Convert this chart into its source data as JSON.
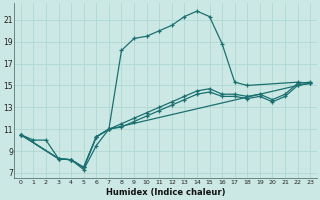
{
  "xlabel": "Humidex (Indice chaleur)",
  "xlim": [
    -0.5,
    23.5
  ],
  "ylim": [
    6.5,
    22.5
  ],
  "xticks": [
    0,
    1,
    2,
    3,
    4,
    5,
    6,
    7,
    8,
    9,
    10,
    11,
    12,
    13,
    14,
    15,
    16,
    17,
    18,
    19,
    20,
    21,
    22,
    23
  ],
  "yticks": [
    7,
    9,
    11,
    13,
    15,
    17,
    19,
    21
  ],
  "background_color": "#cce8e4",
  "grid_color": "#b0d8d4",
  "line_color": "#1a7070",
  "line1_x": [
    0,
    1,
    2,
    3,
    4,
    5,
    6,
    7,
    8,
    9,
    10,
    11,
    12,
    13,
    14,
    15,
    16,
    17,
    18,
    22,
    23
  ],
  "line1_y": [
    10.5,
    10.0,
    10.0,
    8.3,
    8.2,
    7.3,
    9.5,
    11.0,
    18.2,
    19.3,
    19.5,
    20.0,
    20.5,
    21.3,
    21.8,
    21.3,
    18.8,
    15.3,
    15.0,
    15.3,
    15.2
  ],
  "line2_x": [
    0,
    3,
    4,
    5,
    6,
    7,
    8,
    9,
    10,
    11,
    12,
    13,
    14,
    15,
    16,
    17,
    18,
    19,
    20,
    21,
    22,
    23
  ],
  "line2_y": [
    10.5,
    8.3,
    8.2,
    7.5,
    10.3,
    11.0,
    11.2,
    11.7,
    12.2,
    12.7,
    13.2,
    13.7,
    14.2,
    14.4,
    14.0,
    14.0,
    13.8,
    14.0,
    13.5,
    14.0,
    15.0,
    15.2
  ],
  "line3_x": [
    0,
    3,
    4,
    5,
    6,
    7,
    8,
    9,
    10,
    11,
    12,
    13,
    14,
    15,
    16,
    17,
    18,
    19,
    20,
    21,
    22,
    23
  ],
  "line3_y": [
    10.5,
    8.3,
    8.2,
    7.5,
    10.3,
    11.0,
    11.5,
    12.0,
    12.5,
    13.0,
    13.5,
    14.0,
    14.5,
    14.7,
    14.2,
    14.2,
    14.0,
    14.2,
    13.7,
    14.2,
    15.2,
    15.3
  ],
  "line4_x": [
    0,
    3,
    4,
    5,
    6,
    7,
    22,
    23
  ],
  "line4_y": [
    10.5,
    8.3,
    8.2,
    7.5,
    10.3,
    11.0,
    15.0,
    15.2
  ]
}
